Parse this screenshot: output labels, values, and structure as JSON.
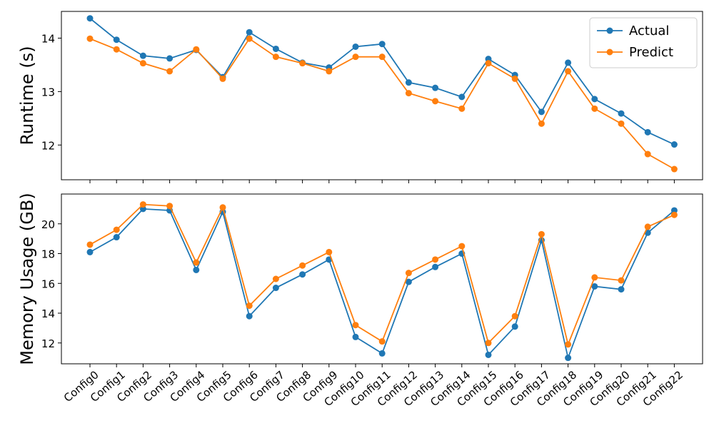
{
  "chart_data": [
    {
      "type": "line",
      "ylabel": "Runtime (s)",
      "xlabel": "",
      "categories": [
        "Config0",
        "Config1",
        "Config2",
        "Config3",
        "Config4",
        "Config5",
        "Config6",
        "Config7",
        "Config8",
        "Config9",
        "Config10",
        "Config11",
        "Config12",
        "Config13",
        "Config14",
        "Config15",
        "Config16",
        "Config17",
        "Config18",
        "Config19",
        "Config20",
        "Config21",
        "Config22"
      ],
      "ylim": [
        11.35,
        14.5
      ],
      "yticks": [
        12,
        13,
        14
      ],
      "show_xtick_labels": false,
      "grid": false,
      "legend": "top-right",
      "series": [
        {
          "name": "Actual",
          "color": "#1f77b4",
          "values": [
            14.37,
            13.97,
            13.67,
            13.62,
            13.78,
            13.27,
            14.11,
            13.8,
            13.54,
            13.45,
            13.84,
            13.89,
            13.17,
            13.07,
            12.9,
            13.61,
            13.31,
            12.62,
            13.54,
            12.86,
            12.59,
            12.24,
            12.01
          ]
        },
        {
          "name": "Predict",
          "color": "#ff7f0e",
          "values": [
            13.99,
            13.79,
            13.53,
            13.38,
            13.79,
            13.24,
            13.99,
            13.65,
            13.53,
            13.38,
            13.65,
            13.65,
            12.97,
            12.82,
            12.68,
            13.53,
            13.24,
            12.4,
            13.38,
            12.68,
            12.4,
            11.83,
            11.55
          ]
        }
      ]
    },
    {
      "type": "line",
      "ylabel": "Memory Usage (GB)",
      "xlabel": "",
      "categories": [
        "Config0",
        "Config1",
        "Config2",
        "Config3",
        "Config4",
        "Config5",
        "Config6",
        "Config7",
        "Config8",
        "Config9",
        "Config10",
        "Config11",
        "Config12",
        "Config13",
        "Config14",
        "Config15",
        "Config16",
        "Config17",
        "Config18",
        "Config19",
        "Config20",
        "Config21",
        "Config22"
      ],
      "ylim": [
        10.6,
        22.0
      ],
      "yticks": [
        12,
        14,
        16,
        18,
        20
      ],
      "show_xtick_labels": true,
      "grid": false,
      "series": [
        {
          "name": "Actual",
          "color": "#1f77b4",
          "values": [
            18.1,
            19.1,
            21.0,
            20.9,
            16.9,
            20.8,
            13.8,
            15.7,
            16.6,
            17.6,
            12.4,
            11.3,
            16.1,
            17.1,
            18.0,
            11.2,
            13.1,
            18.9,
            11.0,
            15.8,
            15.6,
            19.4,
            20.9
          ]
        },
        {
          "name": "Predict",
          "color": "#ff7f0e",
          "values": [
            18.6,
            19.6,
            21.3,
            21.2,
            17.4,
            21.1,
            14.5,
            16.3,
            17.2,
            18.1,
            13.2,
            12.1,
            16.7,
            17.6,
            18.5,
            12.0,
            13.8,
            19.3,
            11.9,
            16.4,
            16.2,
            19.8,
            20.6
          ]
        }
      ]
    }
  ]
}
